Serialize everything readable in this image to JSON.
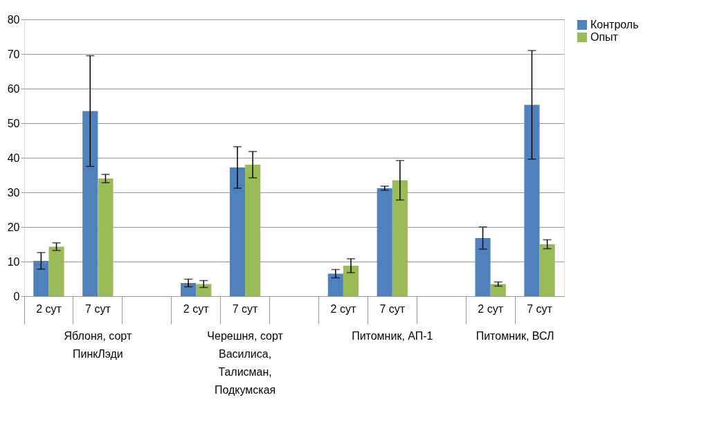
{
  "chart_data": {
    "type": "bar",
    "categories": [
      "2 сут",
      "7 сут",
      null,
      "2 сут",
      "7 сут",
      null,
      "2 сут",
      "7 сут",
      null,
      "2 сут",
      "7 сут"
    ],
    "series": [
      {
        "name": "Контроль",
        "color": "#4f81bd",
        "values": [
          10.2,
          53.5,
          null,
          3.8,
          37.2,
          null,
          6.5,
          31.2,
          null,
          16.8,
          55.3
        ],
        "errors": [
          2.4,
          16,
          null,
          1.1,
          6,
          null,
          1.2,
          0.6,
          null,
          3.2,
          15.7
        ]
      },
      {
        "name": "Опыт",
        "color": "#9bbb59",
        "values": [
          14.3,
          34,
          null,
          3.5,
          38,
          null,
          8.8,
          33.5,
          null,
          3.5,
          15
        ],
        "errors": [
          1.1,
          1.2,
          null,
          1.0,
          3.8,
          null,
          2,
          5.7,
          null,
          0.6,
          1.3
        ]
      }
    ],
    "annotations": [
      "Яблоня, сорт ПинкЛэди",
      "Черешня, сорт Василиса, Талисман, Подкумская",
      "Питомник, АП-1",
      "Питомник, ВСЛ"
    ],
    "ylim": [
      0,
      80
    ],
    "yticks": [
      0,
      10,
      20,
      30,
      40,
      50,
      60,
      70,
      80
    ],
    "grid": "y",
    "legend": "right"
  }
}
